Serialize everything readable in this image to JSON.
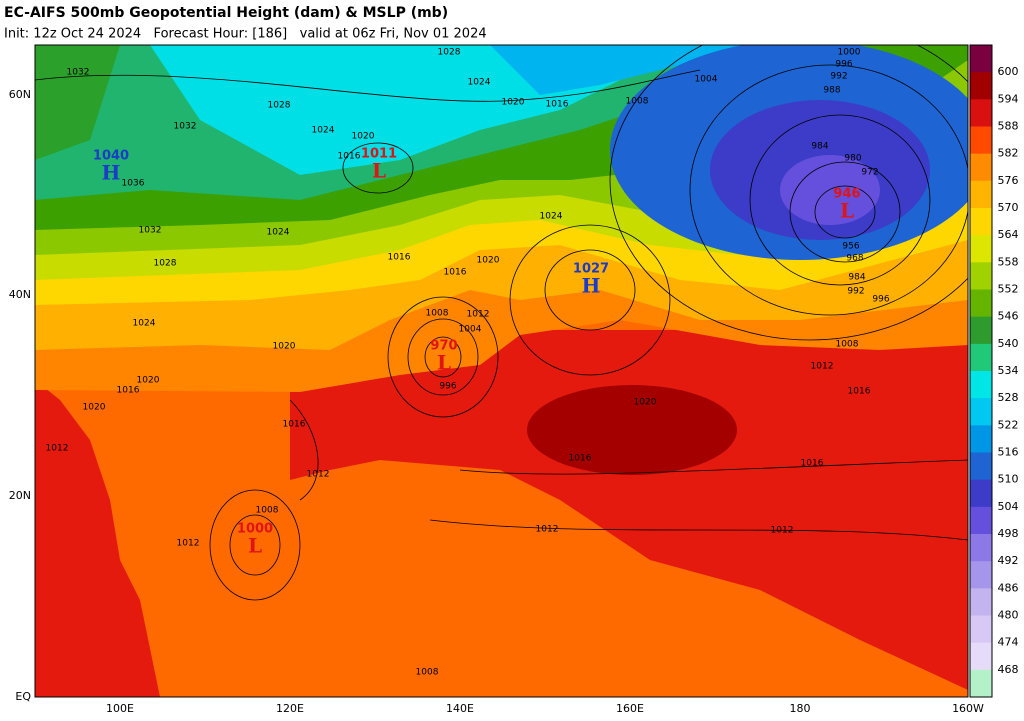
{
  "header": {
    "title": "EC-AIFS 500mb Geopotential Height (dam) & MSLP (mb)",
    "subtitle": "Init: 12z Oct 24 2024   Forecast Hour: [186]   valid at 06z Fri, Nov 01 2024"
  },
  "lat_labels": [
    "60N",
    "40N",
    "20N",
    "EQ"
  ],
  "lon_labels": [
    "100E",
    "120E",
    "140E",
    "160E",
    "180",
    "160W"
  ],
  "colorbar": {
    "labels": [
      "600",
      "594",
      "588",
      "582",
      "576",
      "570",
      "564",
      "558",
      "552",
      "546",
      "540",
      "534",
      "528",
      "522",
      "516",
      "510",
      "504",
      "498",
      "492",
      "486",
      "480",
      "474",
      "468"
    ],
    "colors": [
      "#7a0040",
      "#a00000",
      "#d81010",
      "#ff4a00",
      "#ff8c00",
      "#ffb400",
      "#ffd700",
      "#dce600",
      "#a0d200",
      "#64b400",
      "#2d9b2d",
      "#20c878",
      "#00e6e6",
      "#00c8f0",
      "#0096e6",
      "#1e64d2",
      "#3c3cc8",
      "#6450dc",
      "#8c78e6",
      "#a596eb",
      "#c3b4f0",
      "#d7c8f5",
      "#e6dcfa",
      "#b4f0c8"
    ]
  },
  "centers": [
    {
      "letter": "H",
      "value": "1040",
      "color": "#1a3cc8"
    },
    {
      "letter": "L",
      "value": "1011",
      "color": "#e01414"
    },
    {
      "letter": "H",
      "value": "1027",
      "color": "#1a3cc8"
    },
    {
      "letter": "L",
      "value": "946",
      "color": "#e01414"
    },
    {
      "letter": "L",
      "value": "970",
      "color": "#e01414"
    },
    {
      "letter": "L",
      "value": "1000",
      "color": "#e01414"
    }
  ],
  "isobar_labels": [
    "1032",
    "1028",
    "1032",
    "1036",
    "1032",
    "1028",
    "1024",
    "1024",
    "1024",
    "1020",
    "1016",
    "1028",
    "1024",
    "1020",
    "1016",
    "1008",
    "1004",
    "1000",
    "996",
    "992",
    "988",
    "984",
    "980",
    "972",
    "956",
    "968",
    "984",
    "992",
    "996",
    "1008",
    "1012",
    "1016",
    "1016",
    "1012",
    "1012",
    "1016",
    "1020",
    "1024",
    "1020",
    "1016",
    "1016",
    "1020",
    "1016",
    "1012",
    "1008",
    "1008",
    "1012",
    "1004",
    "996",
    "1008",
    "1020",
    "1016",
    "1012",
    "1020",
    "1012"
  ]
}
